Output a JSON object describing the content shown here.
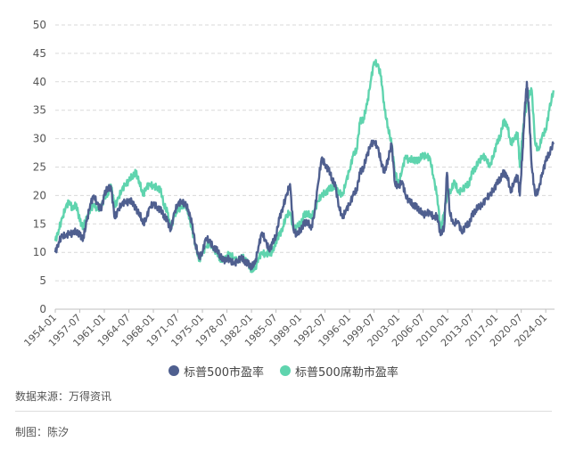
{
  "chart_data": {
    "type": "line",
    "ylim": [
      0,
      50
    ],
    "yticks": [
      0,
      5,
      10,
      15,
      20,
      25,
      30,
      35,
      40,
      45,
      50
    ],
    "xlim": [
      1954.0,
      2025.25
    ],
    "xtick_labels": [
      "1954-01",
      "1957-07",
      "1961-01",
      "1964-07",
      "1968-01",
      "1971-07",
      "1975-01",
      "1978-07",
      "1982-01",
      "1985-07",
      "1989-01",
      "1992-07",
      "1996-01",
      "1999-07",
      "2003-01",
      "2006-07",
      "2010-01",
      "2013-07",
      "2017-01",
      "2020-07",
      "2024-01"
    ],
    "grid": true,
    "legend_position": "bottom",
    "series": [
      {
        "name": "标普500市盈率",
        "color": "#4f5f8f",
        "points": [
          [
            1954.0,
            10.0
          ],
          [
            1954.5,
            11.8
          ],
          [
            1955.0,
            13.0
          ],
          [
            1955.5,
            12.8
          ],
          [
            1956.0,
            13.5
          ],
          [
            1956.5,
            13.2
          ],
          [
            1957.0,
            13.8
          ],
          [
            1957.5,
            13.0
          ],
          [
            1958.0,
            12.5
          ],
          [
            1958.5,
            15.5
          ],
          [
            1959.0,
            18.5
          ],
          [
            1959.5,
            20.0
          ],
          [
            1960.0,
            18.5
          ],
          [
            1960.5,
            17.5
          ],
          [
            1961.0,
            20.0
          ],
          [
            1961.5,
            21.5
          ],
          [
            1962.0,
            21.0
          ],
          [
            1962.5,
            16.0
          ],
          [
            1963.0,
            17.5
          ],
          [
            1963.5,
            18.5
          ],
          [
            1964.0,
            19.0
          ],
          [
            1964.5,
            18.8
          ],
          [
            1965.0,
            19.0
          ],
          [
            1965.5,
            17.5
          ],
          [
            1966.0,
            17.0
          ],
          [
            1966.5,
            15.0
          ],
          [
            1967.0,
            16.0
          ],
          [
            1967.5,
            18.0
          ],
          [
            1968.0,
            18.5
          ],
          [
            1968.5,
            18.0
          ],
          [
            1969.0,
            17.5
          ],
          [
            1969.5,
            16.5
          ],
          [
            1970.0,
            15.5
          ],
          [
            1970.5,
            14.0
          ],
          [
            1971.0,
            17.0
          ],
          [
            1971.5,
            18.5
          ],
          [
            1972.0,
            19.0
          ],
          [
            1972.5,
            18.5
          ],
          [
            1973.0,
            17.5
          ],
          [
            1973.5,
            15.0
          ],
          [
            1974.0,
            11.5
          ],
          [
            1974.5,
            9.0
          ],
          [
            1975.0,
            10.0
          ],
          [
            1975.5,
            12.5
          ],
          [
            1976.0,
            12.0
          ],
          [
            1976.5,
            11.0
          ],
          [
            1977.0,
            10.5
          ],
          [
            1977.5,
            9.5
          ],
          [
            1978.0,
            8.5
          ],
          [
            1978.5,
            9.0
          ],
          [
            1979.0,
            8.5
          ],
          [
            1979.5,
            8.0
          ],
          [
            1980.0,
            8.5
          ],
          [
            1980.5,
            9.0
          ],
          [
            1981.0,
            8.5
          ],
          [
            1981.5,
            8.0
          ],
          [
            1982.0,
            7.5
          ],
          [
            1982.5,
            8.0
          ],
          [
            1983.0,
            11.0
          ],
          [
            1983.5,
            13.5
          ],
          [
            1984.0,
            12.0
          ],
          [
            1984.5,
            10.5
          ],
          [
            1985.0,
            11.5
          ],
          [
            1985.5,
            13.0
          ],
          [
            1986.0,
            16.0
          ],
          [
            1986.5,
            18.0
          ],
          [
            1987.0,
            20.0
          ],
          [
            1987.5,
            22.0
          ],
          [
            1988.0,
            14.0
          ],
          [
            1988.5,
            13.0
          ],
          [
            1989.0,
            14.0
          ],
          [
            1989.5,
            15.0
          ],
          [
            1990.0,
            15.5
          ],
          [
            1990.5,
            14.0
          ],
          [
            1991.0,
            17.0
          ],
          [
            1991.5,
            22.0
          ],
          [
            1992.0,
            26.5
          ],
          [
            1992.5,
            25.5
          ],
          [
            1993.0,
            24.5
          ],
          [
            1993.5,
            23.0
          ],
          [
            1994.0,
            21.5
          ],
          [
            1994.5,
            18.0
          ],
          [
            1995.0,
            16.0
          ],
          [
            1995.5,
            17.5
          ],
          [
            1996.0,
            18.5
          ],
          [
            1996.5,
            20.0
          ],
          [
            1997.0,
            21.0
          ],
          [
            1997.5,
            24.0
          ],
          [
            1998.0,
            25.0
          ],
          [
            1998.5,
            27.0
          ],
          [
            1999.0,
            29.0
          ],
          [
            1999.5,
            29.5
          ],
          [
            2000.0,
            28.5
          ],
          [
            2000.5,
            26.0
          ],
          [
            2001.0,
            24.0
          ],
          [
            2001.5,
            26.5
          ],
          [
            2002.0,
            29.0
          ],
          [
            2002.5,
            22.0
          ],
          [
            2003.0,
            21.5
          ],
          [
            2003.5,
            22.5
          ],
          [
            2004.0,
            20.0
          ],
          [
            2004.5,
            19.0
          ],
          [
            2005.0,
            18.5
          ],
          [
            2005.5,
            18.0
          ],
          [
            2006.0,
            17.5
          ],
          [
            2006.5,
            16.5
          ],
          [
            2007.0,
            17.0
          ],
          [
            2007.5,
            17.0
          ],
          [
            2008.0,
            16.0
          ],
          [
            2008.5,
            16.5
          ],
          [
            2009.0,
            13.0
          ],
          [
            2009.5,
            14.5
          ],
          [
            2009.9,
            24.0
          ],
          [
            2010.3,
            17.0
          ],
          [
            2010.8,
            15.0
          ],
          [
            2011.5,
            15.5
          ],
          [
            2012.0,
            13.5
          ],
          [
            2012.5,
            14.5
          ],
          [
            2013.0,
            15.0
          ],
          [
            2013.5,
            16.5
          ],
          [
            2014.0,
            17.5
          ],
          [
            2014.5,
            18.0
          ],
          [
            2015.0,
            18.5
          ],
          [
            2015.5,
            19.5
          ],
          [
            2016.0,
            20.0
          ],
          [
            2016.5,
            21.0
          ],
          [
            2017.0,
            22.0
          ],
          [
            2017.5,
            23.0
          ],
          [
            2018.0,
            24.0
          ],
          [
            2018.5,
            23.5
          ],
          [
            2019.0,
            20.5
          ],
          [
            2019.5,
            22.5
          ],
          [
            2020.0,
            23.5
          ],
          [
            2020.3,
            20.0
          ],
          [
            2020.7,
            28.0
          ],
          [
            2021.0,
            35.0
          ],
          [
            2021.3,
            40.0
          ],
          [
            2021.6,
            35.0
          ],
          [
            2022.0,
            25.0
          ],
          [
            2022.5,
            20.0
          ],
          [
            2023.0,
            21.0
          ],
          [
            2023.5,
            24.0
          ],
          [
            2024.0,
            26.0
          ],
          [
            2024.5,
            27.5
          ],
          [
            2025.1,
            29.0
          ]
        ]
      },
      {
        "name": "标普500席勒市盈率",
        "color": "#5fd4ae",
        "points": [
          [
            1954.0,
            12.0
          ],
          [
            1954.5,
            14.0
          ],
          [
            1955.0,
            16.0
          ],
          [
            1955.5,
            18.0
          ],
          [
            1956.0,
            19.0
          ],
          [
            1956.5,
            17.5
          ],
          [
            1957.0,
            18.5
          ],
          [
            1957.5,
            15.5
          ],
          [
            1958.0,
            14.5
          ],
          [
            1958.5,
            16.0
          ],
          [
            1959.0,
            17.5
          ],
          [
            1959.5,
            18.5
          ],
          [
            1960.0,
            17.5
          ],
          [
            1960.5,
            18.0
          ],
          [
            1961.0,
            19.5
          ],
          [
            1961.5,
            20.5
          ],
          [
            1962.0,
            21.5
          ],
          [
            1962.5,
            18.0
          ],
          [
            1963.0,
            19.5
          ],
          [
            1963.5,
            21.0
          ],
          [
            1964.0,
            22.0
          ],
          [
            1964.5,
            22.5
          ],
          [
            1965.0,
            23.5
          ],
          [
            1965.5,
            24.0
          ],
          [
            1966.0,
            22.5
          ],
          [
            1966.5,
            20.0
          ],
          [
            1967.0,
            21.5
          ],
          [
            1967.5,
            22.0
          ],
          [
            1968.0,
            21.5
          ],
          [
            1968.5,
            21.5
          ],
          [
            1969.0,
            21.0
          ],
          [
            1969.5,
            18.5
          ],
          [
            1970.0,
            17.0
          ],
          [
            1970.5,
            14.0
          ],
          [
            1971.0,
            16.5
          ],
          [
            1971.5,
            17.5
          ],
          [
            1972.0,
            18.0
          ],
          [
            1972.5,
            18.5
          ],
          [
            1973.0,
            17.0
          ],
          [
            1973.5,
            14.0
          ],
          [
            1974.0,
            11.5
          ],
          [
            1974.5,
            8.5
          ],
          [
            1975.0,
            10.0
          ],
          [
            1975.5,
            11.0
          ],
          [
            1976.0,
            11.5
          ],
          [
            1976.5,
            11.0
          ],
          [
            1977.0,
            10.0
          ],
          [
            1977.5,
            9.0
          ],
          [
            1978.0,
            8.5
          ],
          [
            1978.5,
            9.5
          ],
          [
            1979.0,
            9.5
          ],
          [
            1979.5,
            9.0
          ],
          [
            1980.0,
            8.5
          ],
          [
            1980.5,
            9.0
          ],
          [
            1981.0,
            9.0
          ],
          [
            1981.5,
            8.0
          ],
          [
            1982.0,
            7.0
          ],
          [
            1982.5,
            7.0
          ],
          [
            1983.0,
            9.0
          ],
          [
            1983.5,
            10.0
          ],
          [
            1984.0,
            9.5
          ],
          [
            1984.5,
            10.0
          ],
          [
            1985.0,
            10.0
          ],
          [
            1985.5,
            12.0
          ],
          [
            1986.0,
            13.0
          ],
          [
            1986.5,
            14.5
          ],
          [
            1987.0,
            16.5
          ],
          [
            1987.5,
            17.0
          ],
          [
            1988.0,
            14.0
          ],
          [
            1988.5,
            14.5
          ],
          [
            1989.0,
            15.0
          ],
          [
            1989.5,
            16.5
          ],
          [
            1990.0,
            17.0
          ],
          [
            1990.5,
            16.0
          ],
          [
            1991.0,
            17.5
          ],
          [
            1991.5,
            19.0
          ],
          [
            1992.0,
            20.0
          ],
          [
            1992.5,
            20.5
          ],
          [
            1993.0,
            21.0
          ],
          [
            1993.5,
            21.5
          ],
          [
            1994.0,
            21.5
          ],
          [
            1994.5,
            20.5
          ],
          [
            1995.0,
            20.0
          ],
          [
            1995.5,
            22.5
          ],
          [
            1996.0,
            24.5
          ],
          [
            1996.5,
            27.0
          ],
          [
            1997.0,
            28.0
          ],
          [
            1997.5,
            33.0
          ],
          [
            1998.0,
            33.5
          ],
          [
            1998.5,
            36.0
          ],
          [
            1999.0,
            40.0
          ],
          [
            1999.5,
            43.5
          ],
          [
            2000.0,
            43.0
          ],
          [
            2000.5,
            41.0
          ],
          [
            2001.0,
            35.0
          ],
          [
            2001.5,
            32.0
          ],
          [
            2002.0,
            29.0
          ],
          [
            2002.5,
            24.0
          ],
          [
            2003.0,
            22.0
          ],
          [
            2003.5,
            24.5
          ],
          [
            2004.0,
            27.0
          ],
          [
            2004.5,
            26.0
          ],
          [
            2005.0,
            26.5
          ],
          [
            2005.5,
            26.0
          ],
          [
            2006.0,
            26.5
          ],
          [
            2006.5,
            27.0
          ],
          [
            2007.0,
            27.0
          ],
          [
            2007.5,
            26.5
          ],
          [
            2008.0,
            23.0
          ],
          [
            2008.5,
            20.0
          ],
          [
            2009.0,
            14.0
          ],
          [
            2009.5,
            17.0
          ],
          [
            2010.0,
            20.5
          ],
          [
            2010.5,
            21.0
          ],
          [
            2011.0,
            22.5
          ],
          [
            2011.5,
            20.5
          ],
          [
            2012.0,
            21.0
          ],
          [
            2012.5,
            21.5
          ],
          [
            2013.0,
            22.0
          ],
          [
            2013.5,
            24.0
          ],
          [
            2014.0,
            25.0
          ],
          [
            2014.5,
            26.0
          ],
          [
            2015.0,
            27.0
          ],
          [
            2015.5,
            26.5
          ],
          [
            2016.0,
            25.0
          ],
          [
            2016.5,
            27.0
          ],
          [
            2017.0,
            29.0
          ],
          [
            2017.5,
            30.5
          ],
          [
            2018.0,
            33.0
          ],
          [
            2018.5,
            32.5
          ],
          [
            2019.0,
            29.0
          ],
          [
            2019.5,
            30.0
          ],
          [
            2020.0,
            31.0
          ],
          [
            2020.3,
            25.0
          ],
          [
            2020.7,
            31.0
          ],
          [
            2021.0,
            34.0
          ],
          [
            2021.5,
            37.5
          ],
          [
            2022.0,
            38.5
          ],
          [
            2022.5,
            29.0
          ],
          [
            2023.0,
            28.0
          ],
          [
            2023.5,
            30.5
          ],
          [
            2024.0,
            31.5
          ],
          [
            2024.5,
            35.0
          ],
          [
            2025.1,
            38.5
          ]
        ]
      }
    ]
  },
  "footer": {
    "source": "数据来源：万得资讯",
    "maker": "制图：陈汐"
  }
}
